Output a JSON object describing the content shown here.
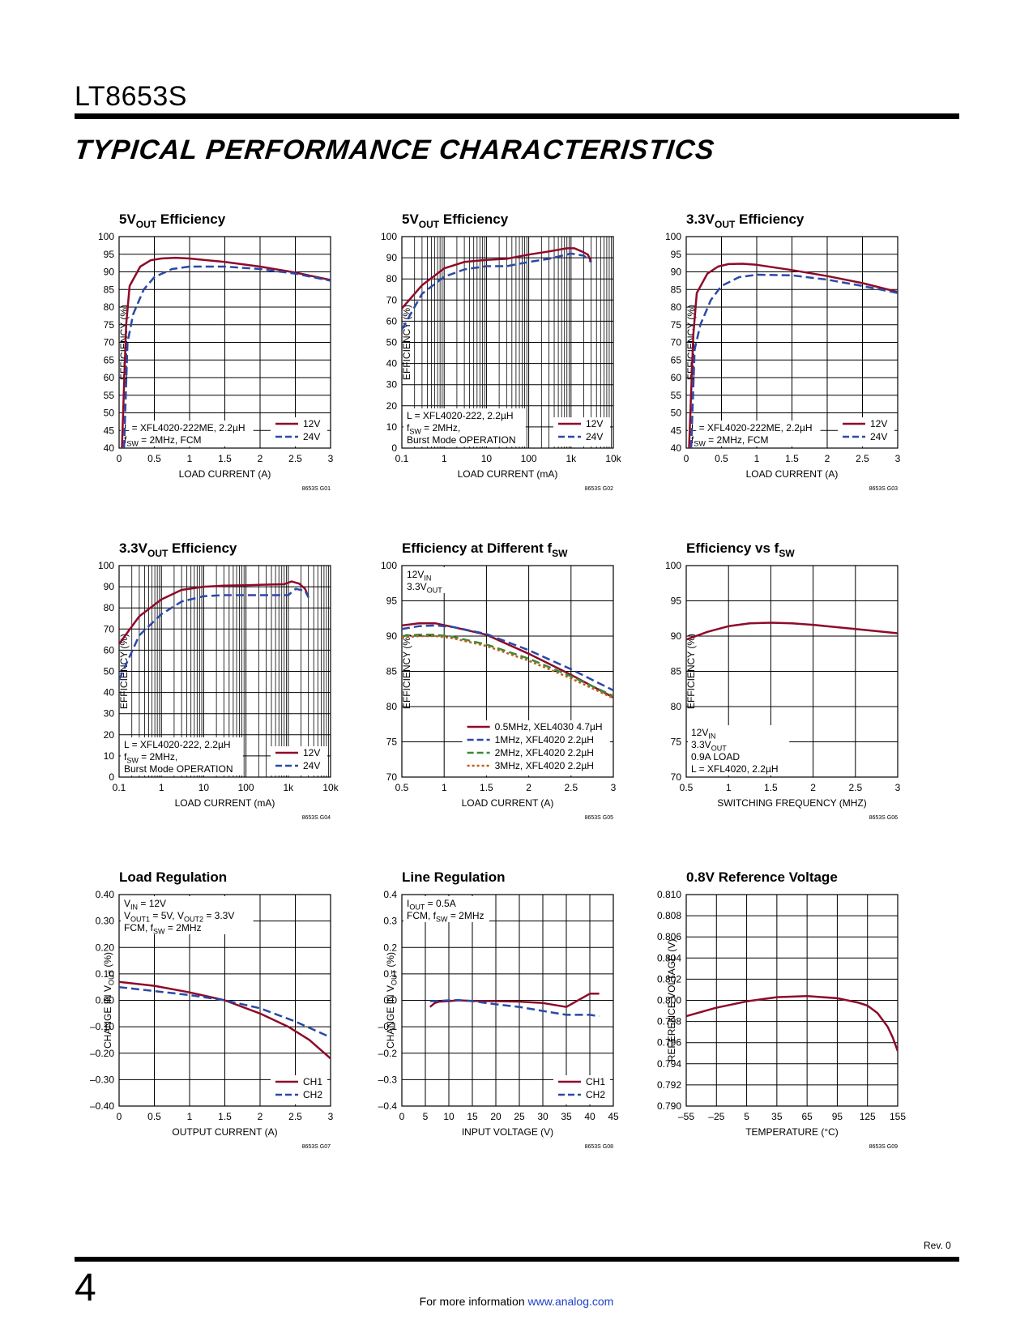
{
  "header": {
    "part_number": "LT8653S",
    "section_title": "TYPICAL PERFORMANCE CHARACTERISTICS"
  },
  "footer": {
    "page_number": "4",
    "text": "For more information ",
    "link": "www.analog.com",
    "revision": "Rev. 0"
  },
  "colors": {
    "red": "#8e0a2a",
    "blue": "#2a49a8",
    "green": "#3a8a3a",
    "orange": "#b8621e"
  },
  "chart_data": [
    {
      "type": "line",
      "title_main": "5V",
      "title_sub": "OUT",
      "title_rest": " Efficiency",
      "xscale": "linear",
      "xlim": [
        0,
        3
      ],
      "ylim": [
        40,
        100
      ],
      "xticks": [
        0,
        0.5,
        1,
        1.5,
        2,
        2.5,
        3
      ],
      "yticks": [
        40,
        45,
        50,
        55,
        60,
        65,
        70,
        75,
        80,
        85,
        90,
        95,
        100
      ],
      "xlabel": "LOAD CURRENT (A)",
      "ylabel": "EFFICIENCY (%)",
      "code": "8653S G01",
      "note": [
        "L = XFL4020-222ME, 2.2µH",
        "f|SW| = 2MHz, FCM"
      ],
      "series": [
        {
          "name": "12V",
          "color": "red",
          "dash": "solid",
          "x": [
            0.04,
            0.1,
            0.15,
            0.3,
            0.45,
            0.6,
            0.8,
            1.0,
            1.5,
            2.0,
            2.5,
            3.0
          ],
          "y": [
            40,
            75,
            86,
            91.5,
            93.3,
            93.8,
            94,
            93.8,
            92.8,
            91.5,
            89.8,
            87.7
          ]
        },
        {
          "name": "24V",
          "color": "blue",
          "dash": "dash",
          "x": [
            0.07,
            0.12,
            0.2,
            0.35,
            0.5,
            0.75,
            1.0,
            1.5,
            2.0,
            2.5,
            3.0
          ],
          "y": [
            40,
            70,
            78,
            85,
            88.5,
            90.8,
            91.5,
            91.5,
            90.8,
            89.5,
            87.5
          ]
        }
      ]
    },
    {
      "type": "line",
      "title_main": "5V",
      "title_sub": "OUT",
      "title_rest": " Efficiency",
      "xscale": "log",
      "xlim": [
        0.1,
        10000
      ],
      "ylim": [
        0,
        100
      ],
      "xticks": [
        0.1,
        1,
        10,
        100,
        1000,
        10000
      ],
      "xticklabels": [
        "0.1",
        "1",
        "10",
        "100",
        "1k",
        "10k"
      ],
      "yticks": [
        0,
        10,
        20,
        30,
        40,
        50,
        60,
        70,
        80,
        90,
        100
      ],
      "xlabel": "LOAD CURRENT (mA)",
      "ylabel": "EFFICIENCY (%)",
      "code": "8653S G02",
      "note": [
        "L = XFL4020-222, 2.2µH",
        "f|SW| = 2MHz,",
        "Burst Mode OPERATION"
      ],
      "series": [
        {
          "name": "12V",
          "color": "red",
          "dash": "solid",
          "x": [
            0.1,
            0.3,
            1,
            3,
            10,
            30,
            100,
            300,
            800,
            1200,
            1800,
            2500,
            3000
          ],
          "y": [
            66,
            77,
            85,
            88,
            89,
            89.5,
            91.5,
            93,
            94.5,
            94.5,
            93,
            91.5,
            88
          ]
        },
        {
          "name": "24V",
          "color": "blue",
          "dash": "dash",
          "x": [
            0.1,
            0.3,
            1,
            3,
            10,
            30,
            100,
            300,
            1000,
            2000,
            3000
          ],
          "y": [
            56,
            73,
            81,
            84.5,
            86,
            86,
            88,
            89.5,
            92,
            91,
            88
          ]
        }
      ]
    },
    {
      "type": "line",
      "title_main": "3.3V",
      "title_sub": "OUT",
      "title_rest": " Efficiency",
      "xscale": "linear",
      "xlim": [
        0,
        3
      ],
      "ylim": [
        40,
        100
      ],
      "xticks": [
        0,
        0.5,
        1,
        1.5,
        2,
        2.5,
        3
      ],
      "yticks": [
        40,
        45,
        50,
        55,
        60,
        65,
        70,
        75,
        80,
        85,
        90,
        95,
        100
      ],
      "xlabel": "LOAD CURRENT (A)",
      "ylabel": "EFFICIENCY (%)",
      "code": "8653S G03",
      "note": [
        "L = XFL4020-222ME, 2.2µH",
        "f|SW| = 2MHz, FCM"
      ],
      "series": [
        {
          "name": "12V",
          "color": "red",
          "dash": "solid",
          "x": [
            0.04,
            0.1,
            0.15,
            0.3,
            0.45,
            0.6,
            0.8,
            1.0,
            1.5,
            2.0,
            2.5,
            3.0
          ],
          "y": [
            40,
            72,
            84,
            89.5,
            91.5,
            92.2,
            92.3,
            92,
            90.5,
            88.8,
            86.8,
            84.3
          ]
        },
        {
          "name": "24V",
          "color": "blue",
          "dash": "dash",
          "x": [
            0.07,
            0.12,
            0.2,
            0.35,
            0.5,
            0.75,
            1.0,
            1.5,
            2.0,
            2.5,
            3.0
          ],
          "y": [
            40,
            68,
            75,
            82,
            86,
            88.5,
            89.2,
            89,
            87.8,
            86,
            84
          ]
        }
      ]
    },
    {
      "type": "line",
      "title_main": "3.3V",
      "title_sub": "OUT",
      "title_rest": " Efficiency",
      "xscale": "log",
      "xlim": [
        0.1,
        10000
      ],
      "ylim": [
        0,
        100
      ],
      "xticks": [
        0.1,
        1,
        10,
        100,
        1000,
        10000
      ],
      "xticklabels": [
        "0.1",
        "1",
        "10",
        "100",
        "1k",
        "10k"
      ],
      "yticks": [
        0,
        10,
        20,
        30,
        40,
        50,
        60,
        70,
        80,
        90,
        100
      ],
      "xlabel": "LOAD CURRENT (mA)",
      "ylabel": "EFFICIENCY (%)",
      "code": "8653S G04",
      "note": [
        "L = XFL4020-222, 2.2µH",
        "f|SW| = 2MHz,",
        "Burst Mode OPERATION"
      ],
      "series": [
        {
          "name": "12V",
          "color": "red",
          "dash": "solid",
          "x": [
            0.1,
            0.3,
            1,
            3,
            10,
            30,
            100,
            300,
            800,
            1200,
            1800,
            2500,
            3000
          ],
          "y": [
            63,
            76,
            84,
            88.5,
            90,
            90.5,
            90.7,
            91,
            91.2,
            92.5,
            91.5,
            89,
            85
          ]
        },
        {
          "name": "24V",
          "color": "blue",
          "dash": "dash",
          "x": [
            0.1,
            0.3,
            1,
            3,
            10,
            30,
            100,
            300,
            1000,
            1500,
            2500,
            3000
          ],
          "y": [
            46,
            67,
            77,
            83,
            85.5,
            86,
            86,
            86,
            86,
            89,
            88,
            85
          ]
        }
      ]
    },
    {
      "type": "line",
      "title_main": "Efficiency at Different f",
      "title_sub": "SW",
      "title_rest": "",
      "xscale": "linear",
      "xlim": [
        0.5,
        3
      ],
      "ylim": [
        70,
        100
      ],
      "xticks": [
        0.5,
        1,
        1.5,
        2,
        2.5,
        3
      ],
      "yticks": [
        70,
        75,
        80,
        85,
        90,
        95,
        100
      ],
      "xlabel": "LOAD CURRENT (A)",
      "ylabel": "EFFICIENCY (%)",
      "code": "8653S G05",
      "note": [
        "12V|IN|",
        "3.3V|OUT|"
      ],
      "series": [
        {
          "name": "0.5MHz, XEL4030 4.7µH",
          "color": "red",
          "dash": "solid",
          "x": [
            0.5,
            0.7,
            0.9,
            1.1,
            1.5,
            2.0,
            2.5,
            3.0
          ],
          "y": [
            91.5,
            91.8,
            91.8,
            91.3,
            90.2,
            87.5,
            84.5,
            81.3
          ]
        },
        {
          "name": "1MHz, XFL4020 2.2µH",
          "color": "blue",
          "dash": "dash",
          "x": [
            0.5,
            0.7,
            0.9,
            1.1,
            1.5,
            2.0,
            2.5,
            3.0
          ],
          "y": [
            91,
            91.4,
            91.5,
            91.3,
            90.3,
            88,
            85.3,
            82.3
          ]
        },
        {
          "name": "2MHz, XFL4020 2.2µH",
          "color": "green",
          "dash": "dash",
          "x": [
            0.5,
            0.7,
            0.9,
            1.1,
            1.5,
            2.0,
            2.5,
            3.0
          ],
          "y": [
            90,
            90.2,
            90.2,
            89.9,
            88.8,
            86.8,
            84.3,
            81.5
          ]
        },
        {
          "name": "3MHz, XFL4020 2.2µH",
          "color": "orange",
          "dash": "dot",
          "x": [
            0.5,
            0.7,
            0.9,
            1.1,
            1.5,
            2.0,
            2.5,
            3.0
          ],
          "y": [
            89.8,
            90,
            90,
            89.7,
            88.6,
            86.5,
            84,
            81.2
          ]
        }
      ]
    },
    {
      "type": "line",
      "title_main": "Efficiency vs f",
      "title_sub": "SW",
      "title_rest": "",
      "xscale": "linear",
      "xlim": [
        0.5,
        3
      ],
      "ylim": [
        70,
        100
      ],
      "xticks": [
        0.5,
        1,
        1.5,
        2,
        2.5,
        3
      ],
      "yticks": [
        70,
        75,
        80,
        85,
        90,
        95,
        100
      ],
      "xlabel": "SWITCHING FREQUENCY (MHZ)",
      "ylabel": "EFFICIENCY (%)",
      "code": "8653S G06",
      "note": [
        "12V|IN|",
        "3.3V|OUT|",
        "0.9A LOAD",
        "L = XFL4020, 2.2µH"
      ],
      "series": [
        {
          "name": "",
          "color": "red",
          "dash": "solid",
          "x": [
            0.5,
            0.75,
            1.0,
            1.25,
            1.5,
            1.75,
            2.0,
            2.5,
            3.0
          ],
          "y": [
            89.5,
            90.6,
            91.4,
            91.8,
            91.9,
            91.8,
            91.6,
            91.0,
            90.4
          ]
        }
      ]
    },
    {
      "type": "line",
      "title_main": "Load Regulation",
      "title_sub": "",
      "title_rest": "",
      "xscale": "linear",
      "xlim": [
        0,
        3
      ],
      "ylim": [
        -0.4,
        0.4
      ],
      "xticks": [
        0,
        0.5,
        1,
        1.5,
        2,
        2.5,
        3
      ],
      "yticks": [
        -0.4,
        -0.3,
        -0.2,
        -0.1,
        0,
        0.1,
        0.2,
        0.3,
        0.4
      ],
      "yticklabels": [
        "–0.40",
        "–0.30",
        "–0.20",
        "–0.10",
        "0.00",
        "0.10",
        "0.20",
        "0.30",
        "0.40"
      ],
      "xlabel": "OUTPUT CURRENT (A)",
      "ylabel": "CHANGE IN V|OUT| (%)",
      "code": "8653S G07",
      "note": [
        "V|IN| = 12V",
        "V|OUT1| = 5V, V|OUT2| = 3.3V",
        "FCM, f|SW| = 2MHz"
      ],
      "series": [
        {
          "name": "CH1",
          "color": "red",
          "dash": "solid",
          "x": [
            0,
            0.5,
            1.0,
            1.5,
            2.0,
            2.4,
            2.7,
            3.0
          ],
          "y": [
            0.07,
            0.055,
            0.03,
            0.0,
            -0.05,
            -0.1,
            -0.15,
            -0.22
          ]
        },
        {
          "name": "CH2",
          "color": "blue",
          "dash": "dash",
          "x": [
            0,
            0.5,
            1.0,
            1.5,
            2.0,
            2.5,
            3.0
          ],
          "y": [
            0.05,
            0.035,
            0.02,
            0.0,
            -0.03,
            -0.08,
            -0.14
          ]
        }
      ]
    },
    {
      "type": "line",
      "title_main": "Line Regulation",
      "title_sub": "",
      "title_rest": "",
      "xscale": "linear",
      "xlim": [
        0,
        45
      ],
      "ylim": [
        -0.4,
        0.4
      ],
      "xticks": [
        0,
        5,
        10,
        15,
        20,
        25,
        30,
        35,
        40,
        45
      ],
      "yticks": [
        -0.4,
        -0.3,
        -0.2,
        -0.1,
        0,
        0.1,
        0.2,
        0.3,
        0.4
      ],
      "yticklabels": [
        "–0.4",
        "–0.3",
        "–0.2",
        "–0.1",
        "0.0",
        "0.1",
        "0.2",
        "0.3",
        "0.4"
      ],
      "xlabel": "INPUT VOLTAGE (V)",
      "ylabel": "CHANGE IN V|OUT| (%)",
      "code": "8653S G08",
      "note": [
        "I|OUT| = 0.5A",
        "FCM, f|SW| = 2MHz"
      ],
      "series": [
        {
          "name": "CH1",
          "color": "red",
          "dash": "solid",
          "x": [
            6,
            7,
            8,
            10,
            12,
            15,
            20,
            25,
            30,
            35,
            40,
            42
          ],
          "y": [
            -0.025,
            -0.01,
            -0.005,
            -0.003,
            0,
            -0.002,
            -0.003,
            -0.005,
            -0.01,
            -0.025,
            0.025,
            0.025
          ]
        },
        {
          "name": "CH2",
          "color": "blue",
          "dash": "dash",
          "x": [
            6,
            8,
            10,
            12,
            15,
            20,
            25,
            30,
            35,
            40,
            42
          ],
          "y": [
            -0.003,
            -0.002,
            0,
            0.001,
            -0.003,
            -0.015,
            -0.025,
            -0.04,
            -0.055,
            -0.055,
            -0.06
          ]
        }
      ]
    },
    {
      "type": "line",
      "title_main": "0.8V Reference Voltage",
      "title_sub": "",
      "title_rest": "",
      "xscale": "linear",
      "xlim": [
        -55,
        155
      ],
      "ylim": [
        0.79,
        0.81
      ],
      "xticks": [
        -55,
        -25,
        5,
        35,
        65,
        95,
        125,
        155
      ],
      "xticklabels": [
        "–55",
        "–25",
        "5",
        "35",
        "65",
        "95",
        "125",
        "155"
      ],
      "yticks": [
        0.79,
        0.792,
        0.794,
        0.796,
        0.798,
        0.8,
        0.802,
        0.804,
        0.806,
        0.808,
        0.81
      ],
      "yticklabels": [
        "0.790",
        "0.792",
        "0.794",
        "0.796",
        "0.798",
        "0.800",
        "0.802",
        "0.804",
        "0.806",
        "0.808",
        "0.810"
      ],
      "xlabel": "TEMPERATURE (°C)",
      "ylabel": "REFERENCE VOLTAGE (V)",
      "code": "8653S G09",
      "note": [],
      "series": [
        {
          "name": "",
          "color": "red",
          "dash": "solid",
          "x": [
            -55,
            -25,
            5,
            35,
            65,
            95,
            115,
            125,
            135,
            145,
            150,
            155
          ],
          "y": [
            0.7985,
            0.7993,
            0.7999,
            0.8003,
            0.8004,
            0.8002,
            0.7998,
            0.7995,
            0.7988,
            0.7975,
            0.7965,
            0.7952
          ]
        }
      ]
    }
  ]
}
